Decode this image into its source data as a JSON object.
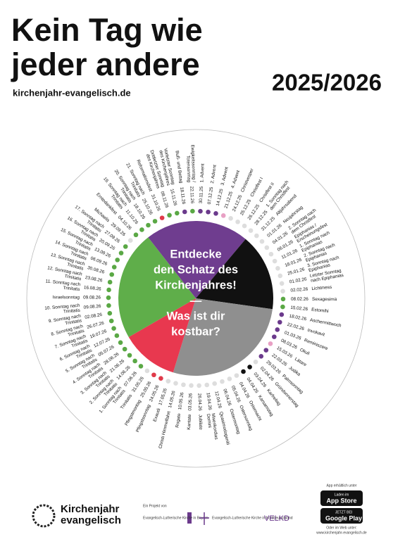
{
  "header": {
    "title_lines": [
      "Kein Tag wie",
      "jeder andere"
    ],
    "url": "kirchenjahr-evangelisch.de",
    "year": "2025/2026"
  },
  "wheel": {
    "center_lines": [
      "Entdecke",
      "den Schatz des",
      "Kirchenjahres!",
      "—",
      "Was ist dir",
      "kostbar?"
    ],
    "entries": [
      {
        "name": [
          "1. Advent"
        ],
        "date": "30.11.25",
        "color": "#6b3a8c"
      },
      {
        "name": [
          "2. Advent"
        ],
        "date": "07.12.25",
        "color": "#6b3a8c"
      },
      {
        "name": [
          "3. Advent"
        ],
        "date": "14.12.25",
        "color": "#6b3a8c"
      },
      {
        "name": [
          "4. Advent"
        ],
        "date": "21.12.25",
        "color": "#e8a0c4"
      },
      {
        "name": [
          "Christvesper"
        ],
        "date": "24.12.25",
        "color": "#dddddd"
      },
      {
        "name": [
          "Christfest I"
        ],
        "date": "25.12.25",
        "color": "#dddddd"
      },
      {
        "name": [
          "Christfest II"
        ],
        "date": "26.12.25",
        "color": "#dddddd"
      },
      {
        "name": [
          "1. Sonntag nach",
          "dem Christfest"
        ],
        "date": "28.12.25",
        "color": "#dddddd"
      },
      {
        "name": [
          "Altjahrsabend"
        ],
        "date": "31.12.25",
        "color": "#dddddd"
      },
      {
        "name": [
          "Neujahrstag"
        ],
        "date": "01.01.26",
        "color": "#dddddd"
      },
      {
        "name": [
          "2. Sonntag nach",
          "dem Christfest"
        ],
        "date": "04.01.26",
        "color": "#dddddd"
      },
      {
        "name": [
          "Epiphanias /",
          "Erscheinungsfest"
        ],
        "date": "06.01.26",
        "color": "#dddddd"
      },
      {
        "name": [
          "1. Sonntag nach",
          "Epiphanias"
        ],
        "date": "11.01.26",
        "color": "#dddddd"
      },
      {
        "name": [
          "2. Sonntag nach",
          "Epiphanias"
        ],
        "date": "18.01.26",
        "color": "#dddddd"
      },
      {
        "name": [
          "3. Sonntag nach",
          "Epiphanias"
        ],
        "date": "25.01.26",
        "color": "#dddddd"
      },
      {
        "name": [
          "Letzter Sonntag",
          "nach Epiphanias"
        ],
        "date": "01.02.26",
        "color": "#dddddd"
      },
      {
        "name": [
          "Lichtmess"
        ],
        "date": "02.02.26",
        "color": "#dddddd"
      },
      {
        "name": [
          "Sexagesimä"
        ],
        "date": "08.02.26",
        "color": "#5aa845"
      },
      {
        "name": [
          "Estomihi"
        ],
        "date": "15.02.26",
        "color": "#5aa845"
      },
      {
        "name": [
          "Aschermittwoch"
        ],
        "date": "18.02.26",
        "color": "#6b3a8c"
      },
      {
        "name": [
          "Invokavit"
        ],
        "date": "22.02.26",
        "color": "#6b3a8c"
      },
      {
        "name": [
          "Reminiszere"
        ],
        "date": "01.03.26",
        "color": "#6b3a8c"
      },
      {
        "name": [
          "Okuli"
        ],
        "date": "08.03.26",
        "color": "#6b3a8c"
      },
      {
        "name": [
          "Lätare"
        ],
        "date": "15.03.26",
        "color": "#e8a0c4"
      },
      {
        "name": [
          "Judika"
        ],
        "date": "22.03.26",
        "color": "#6b3a8c"
      },
      {
        "name": [
          "Palmsonntag"
        ],
        "date": "29.03.26",
        "color": "#6b3a8c"
      },
      {
        "name": [
          "Gründonnerstag"
        ],
        "date": "02.04.26",
        "color": "#dddddd"
      },
      {
        "name": [
          "Karfreitag"
        ],
        "date": "03.04.26",
        "color": "#111111"
      },
      {
        "name": [
          "Karsamstag"
        ],
        "date": "04.04.26",
        "color": "#111111"
      },
      {
        "name": [
          "Osternacht"
        ],
        "date": "04.04.26",
        "color": "#dddddd"
      },
      {
        "name": [
          "Ostersonntag"
        ],
        "date": "05.04.26",
        "color": "#dddddd"
      },
      {
        "name": [
          "Ostermontag"
        ],
        "date": "06.04.26",
        "color": "#dddddd"
      },
      {
        "name": [
          "Quasimodogeniti"
        ],
        "date": "12.04.26",
        "color": "#dddddd"
      },
      {
        "name": [
          "Miserikordias",
          "Domini"
        ],
        "date": "19.04.26",
        "color": "#dddddd"
      },
      {
        "name": [
          "Jubilate"
        ],
        "date": "26.04.26",
        "color": "#dddddd"
      },
      {
        "name": [
          "Kantate"
        ],
        "date": "03.05.26",
        "color": "#dddddd"
      },
      {
        "name": [
          "Rogate"
        ],
        "date": "10.05.26",
        "color": "#dddddd"
      },
      {
        "name": [
          "Christi Himmelfahrt"
        ],
        "date": "14.05.26",
        "color": "#dddddd"
      },
      {
        "name": [
          "Exaudi"
        ],
        "date": "17.05.26",
        "color": "#dddddd"
      },
      {
        "name": [
          "Pfingstsonntag"
        ],
        "date": "24.05.26",
        "color": "#e03a4a"
      },
      {
        "name": [
          "Pfingstmontag"
        ],
        "date": "25.05.26",
        "color": "#e03a4a"
      },
      {
        "name": [
          "Trinitatis"
        ],
        "date": "31.05.26",
        "color": "#dddddd"
      },
      {
        "name": [
          "1. Sonntag nach",
          "Trinitatis"
        ],
        "date": "07.06.26",
        "color": "#5aa845"
      },
      {
        "name": [
          "2. Sonntag nach",
          "Trinitatis"
        ],
        "date": "14.06.26",
        "color": "#5aa845"
      },
      {
        "name": [
          "3. Sonntag nach",
          "Trinitatis"
        ],
        "date": "21.06.26",
        "color": "#5aa845"
      },
      {
        "name": [
          "4. Sonntag nach",
          "Trinitatis"
        ],
        "date": "28.06.26",
        "color": "#5aa845"
      },
      {
        "name": [
          "5. Sonntag nach",
          "Trinitatis"
        ],
        "date": "05.07.26",
        "color": "#5aa845"
      },
      {
        "name": [
          "6. Sonntag nach",
          "Trinitatis"
        ],
        "date": "12.07.26",
        "color": "#5aa845"
      },
      {
        "name": [
          "7. Sonntag nach",
          "Trinitatis"
        ],
        "date": "19.07.26",
        "color": "#5aa845"
      },
      {
        "name": [
          "8. Sonntag nach",
          "Trinitatis"
        ],
        "date": "26.07.26",
        "color": "#5aa845"
      },
      {
        "name": [
          "9. Sonntag nach",
          "Trinitatis"
        ],
        "date": "02.08.26",
        "color": "#5aa845"
      },
      {
        "name": [
          "10. Sonntag nach",
          "Trinitatis"
        ],
        "date": "09.08.26",
        "color": "#5aa845"
      },
      {
        "name": [
          "Israelsonntag"
        ],
        "date": "09.08.26",
        "color": "#5aa845"
      },
      {
        "name": [
          "11. Sonntag nach",
          "Trinitatis"
        ],
        "date": "16.08.26",
        "color": "#5aa845"
      },
      {
        "name": [
          "12. Sonntag nach",
          "Trinitatis"
        ],
        "date": "23.08.26",
        "color": "#5aa845"
      },
      {
        "name": [
          "13. Sonntag nach",
          "Trinitatis"
        ],
        "date": "30.08.26",
        "color": "#5aa845"
      },
      {
        "name": [
          "14. Sonntag nach",
          "Trinitatis"
        ],
        "date": "06.09.26",
        "color": "#5aa845"
      },
      {
        "name": [
          "15. Sonntag nach",
          "Trinitatis"
        ],
        "date": "13.09.26",
        "color": "#5aa845"
      },
      {
        "name": [
          "16. Sonntag nach",
          "Trinitatis"
        ],
        "date": "20.09.26",
        "color": "#5aa845"
      },
      {
        "name": [
          "17. Sonntag nach",
          "Trinitatis"
        ],
        "date": "27.09.26",
        "color": "#5aa845"
      },
      {
        "name": [
          "Michaelis"
        ],
        "date": "29.09.26",
        "color": "#dddddd"
      },
      {
        "name": [
          "Erntedankfest"
        ],
        "date": "04.10.26",
        "color": "#5aa845"
      },
      {
        "name": [
          "19. Sonntag nach",
          "Trinitatis"
        ],
        "date": "11.10.26",
        "color": "#5aa845"
      },
      {
        "name": [
          "20. Sonntag nach",
          "Trinitatis"
        ],
        "date": "18.10.26",
        "color": "#5aa845"
      },
      {
        "name": [
          "21. Sonntag nach",
          "Trinitatis"
        ],
        "date": "25.10.26",
        "color": "#5aa845"
      },
      {
        "name": [
          "Reformationsfest"
        ],
        "date": "31.10.26",
        "color": "#e03a4a"
      },
      {
        "name": [
          "Drittletzter Sonntag",
          "des Kirchenjahres"
        ],
        "date": "08.11.26",
        "color": "#5aa845"
      },
      {
        "name": [
          "Vorletzter Sonntag",
          "des Kirchenjahres"
        ],
        "date": "15.11.26",
        "color": "#5aa845"
      },
      {
        "name": [
          "Buß- und Bettag"
        ],
        "date": "18.11.26",
        "color": "#6b3a8c"
      },
      {
        "name": [
          "Ewigkeitssonntag /",
          "Totensonntag"
        ],
        "date": "22.11.26",
        "color": "#5aa845"
      }
    ]
  },
  "footer": {
    "logo_lines": [
      "Kirchenjahr",
      "evangelisch"
    ],
    "project": "Ein Projekt von",
    "partners": [
      "Evangelisch-Lutherische Kirche in Bayern",
      "Evangelisch-Lutherische Kirche in Norddeutschland",
      "VELKD"
    ],
    "app_note": "App erhältlich unter",
    "app_store": [
      "Laden im",
      "App Store"
    ],
    "google_play": [
      "JETZT BEI",
      "Google Play"
    ],
    "web_note": [
      "Oder im Web unter:",
      "www.kirchenjahr-evangelisch.de"
    ]
  }
}
